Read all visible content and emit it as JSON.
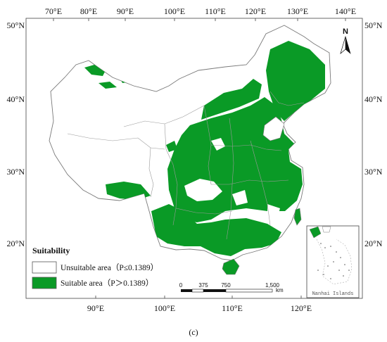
{
  "map": {
    "top_ticks": [
      "70°E",
      "80°E",
      "90°E",
      "100°E",
      "110°E",
      "120°E",
      "130°E",
      "140°E"
    ],
    "bottom_ticks": [
      "90°E",
      "100°E",
      "110°E",
      "120°E"
    ],
    "left_ticks": [
      "50°N",
      "40°N",
      "30°N",
      "20°N"
    ],
    "right_ticks": [
      "50°N",
      "40°N",
      "30°N",
      "20°N"
    ],
    "north_label": "N",
    "colors": {
      "suitable": "#0a9a26",
      "unsuitable": "#ffffff",
      "boundary": "#8a8a8a"
    }
  },
  "legend": {
    "title": "Suitability",
    "unsuitable_label": "Unsuitable area（P≤0.1389）",
    "suitable_label": "Suitable area（P＞0.1389）"
  },
  "scale_bar": {
    "labels": [
      "0",
      "375",
      "750",
      "1,500"
    ],
    "unit": "km"
  },
  "inset": {
    "label": "Nanhai Islands"
  },
  "caption": "(c)"
}
